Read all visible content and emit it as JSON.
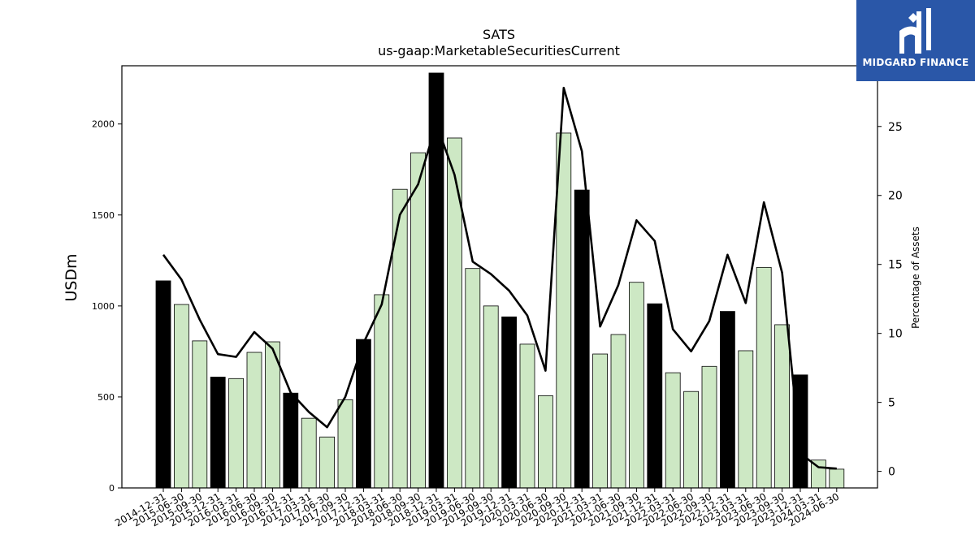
{
  "chart_data": {
    "type": "bar",
    "title": "SATS",
    "subtitle": "us-gaap:MarketableSecuritiesCurrent",
    "ylabel": "USDm",
    "y2label": "Percentage of Assets",
    "ylim": [
      0,
      2320
    ],
    "y2lim": [
      -1.2,
      29.4
    ],
    "yticks": [
      "0",
      "500",
      "1000",
      "1500",
      "2000"
    ],
    "y2ticks": [
      "0",
      "5",
      "10",
      "15",
      "20",
      "25"
    ],
    "categories": [
      "2014-12-31",
      "2015-06-30",
      "2015-09-30",
      "2015-12-31",
      "2016-03-31",
      "2016-06-30",
      "2016-09-30",
      "2016-12-31",
      "2017-03-31",
      "2017-06-30",
      "2017-09-30",
      "2017-12-31",
      "2018-03-31",
      "2018-06-30",
      "2018-09-30",
      "2018-12-31",
      "2019-03-31",
      "2019-06-30",
      "2019-09-30",
      "2019-12-31",
      "2020-03-31",
      "2020-06-30",
      "2020-09-30",
      "2020-12-31",
      "2021-03-31",
      "2021-06-30",
      "2021-09-30",
      "2021-12-31",
      "2022-03-31",
      "2022-06-30",
      "2022-09-30",
      "2022-12-31",
      "2023-03-31",
      "2023-06-30",
      "2023-09-30",
      "2023-12-31",
      "2024-03-31",
      "2024-06-30"
    ],
    "values": [
      1138,
      1008,
      808,
      609,
      601,
      745,
      803,
      521,
      383,
      280,
      485,
      816,
      1062,
      1641,
      1842,
      2280,
      1923,
      1206,
      1000,
      940,
      790,
      507,
      1950,
      1637,
      736,
      843,
      1130,
      1012,
      633,
      530,
      668,
      970,
      754,
      1212,
      897,
      621,
      153,
      103
    ],
    "is_year_end": [
      true,
      false,
      false,
      true,
      false,
      false,
      false,
      true,
      false,
      false,
      false,
      true,
      false,
      false,
      false,
      true,
      false,
      false,
      false,
      true,
      false,
      false,
      false,
      true,
      false,
      false,
      false,
      true,
      false,
      false,
      false,
      true,
      false,
      false,
      false,
      true,
      false,
      false
    ],
    "pct_assets": [
      15.7,
      13.9,
      11.0,
      8.5,
      8.3,
      10.1,
      8.9,
      5.7,
      4.3,
      3.2,
      5.4,
      9.3,
      12.1,
      18.6,
      20.8,
      25.2,
      21.5,
      15.2,
      14.3,
      13.1,
      11.3,
      7.3,
      27.8,
      23.2,
      10.5,
      13.5,
      18.2,
      16.7,
      10.3,
      8.7,
      10.9,
      15.7,
      12.2,
      19.5,
      14.4,
      1.3,
      0.3,
      0.2
    ],
    "colors": {
      "year_end_bar": "#000000",
      "quarter_bar": "#cde8c4",
      "bar_edge": "#000000",
      "line": "#000000"
    },
    "grid": false
  },
  "logo": {
    "text": "MIDGARD FINANCE",
    "bg": "#2a57a8"
  }
}
